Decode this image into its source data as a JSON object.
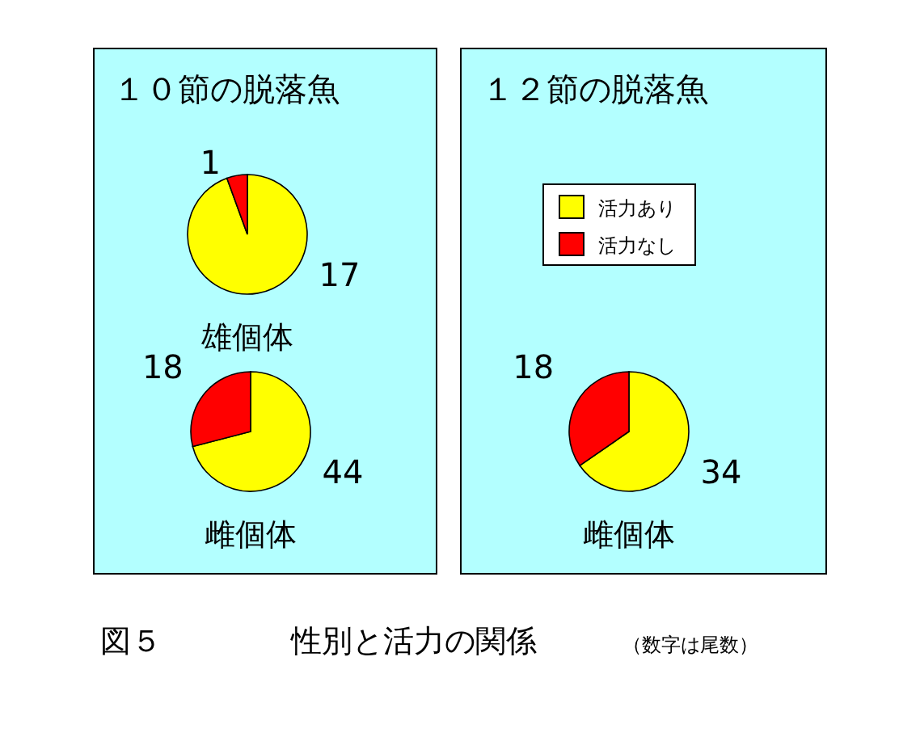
{
  "chart_data": [
    {
      "type": "pie",
      "title": "１０節の脱落魚",
      "xlabel": "雄個体",
      "categories": [
        null,
        null
      ],
      "values": [
        17,
        1
      ],
      "colors": [
        "#ffff00",
        "#ff0000"
      ],
      "data_labels": true,
      "annotations": [
        "図５",
        "性別と活力の関係",
        "（数字は尾数）"
      ]
    },
    {
      "type": "pie",
      "xlabel": "雌個体",
      "categories": [
        null,
        null
      ],
      "values": [
        44,
        18
      ],
      "colors": [
        "#ffff00",
        "#ff0000"
      ],
      "data_labels": true
    },
    {
      "type": "pie",
      "title": "１２節の脱落魚",
      "xlabel": "雌個体",
      "categories": [
        "活力あり",
        "活力なし"
      ],
      "values": [
        34,
        18
      ],
      "colors": [
        "#ffff00",
        "#ff0000"
      ],
      "data_labels": true,
      "legend": "top"
    }
  ]
}
